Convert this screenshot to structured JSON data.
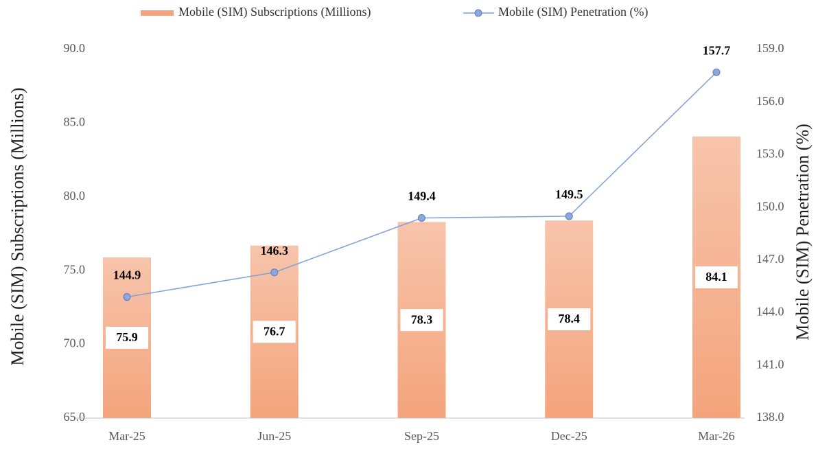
{
  "chart_data": {
    "type": "bar_line",
    "categories": [
      "Mar-25",
      "Jun-25",
      "Sep-25",
      "Dec-25",
      "Mar-26"
    ],
    "series": [
      {
        "name": "Mobile (SIM) Subscriptions (Millions)",
        "type": "bar",
        "color": "#f4a47c",
        "values": [
          75.9,
          76.7,
          78.3,
          78.4,
          84.1
        ]
      },
      {
        "name": "Mobile (SIM) Penetration (%)",
        "type": "line",
        "axis": "y2",
        "color": "#7f9fd8",
        "values": [
          144.9,
          146.3,
          149.4,
          149.5,
          157.7
        ]
      }
    ],
    "y_label": "Mobile (SIM) Subscriptions (Millions)",
    "y2_label": "Mobile (SIM) Penetration (%)",
    "ylim": [
      65,
      90
    ],
    "yticks": [
      {
        "value": 65,
        "label": "65.0"
      },
      {
        "value": 70,
        "label": "70.0"
      },
      {
        "value": 75,
        "label": "75.0"
      },
      {
        "value": 80,
        "label": "80.0"
      },
      {
        "value": 85,
        "label": "85.0"
      },
      {
        "value": 90,
        "label": "90.0"
      }
    ],
    "y2lim": [
      138,
      159
    ],
    "y2ticks": [
      {
        "value": 138,
        "label": "138.0"
      },
      {
        "value": 141,
        "label": "141.0"
      },
      {
        "value": 144,
        "label": "144.0"
      },
      {
        "value": 147,
        "label": "147.0"
      },
      {
        "value": 150,
        "label": "150.0"
      },
      {
        "value": 153,
        "label": "153.0"
      },
      {
        "value": 156,
        "label": "156.0"
      },
      {
        "value": 159,
        "label": "159.0"
      }
    ],
    "legend": "top"
  }
}
